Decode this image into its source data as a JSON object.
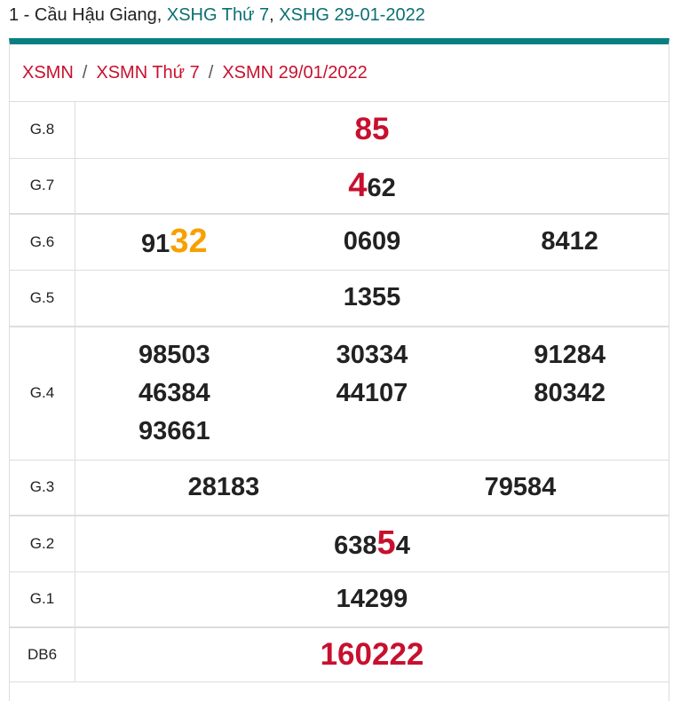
{
  "header": {
    "prefix": "1 - Cầu Hậu Giang, ",
    "link1": "XSHG Thứ 7",
    "comma": ", ",
    "link2": "XSHG 29-01-2022"
  },
  "breadcrumb": [
    "XSMN",
    "XSMN Thứ 7",
    "XSMN 29/01/2022"
  ],
  "breadcrumb_sep": "/",
  "colors": {
    "accent": "#0a7f80",
    "red": "#c8102e",
    "orange": "#f7a000",
    "teal_text": "#0b6f73"
  },
  "prizes": [
    {
      "label": "G.8",
      "cols": 1,
      "numbers": [
        [
          {
            "t": "85",
            "c": "big-red"
          }
        ]
      ]
    },
    {
      "label": "G.7",
      "cols": 1,
      "numbers": [
        [
          {
            "t": "4",
            "c": "hl-red"
          },
          {
            "t": "62"
          }
        ]
      ]
    },
    {
      "label": "G.6",
      "cols": 3,
      "numbers": [
        [
          {
            "t": "91"
          },
          {
            "t": "32",
            "c": "hl-orange"
          }
        ],
        [
          {
            "t": "0609"
          }
        ],
        [
          {
            "t": "8412"
          }
        ]
      ]
    },
    {
      "label": "G.5",
      "cols": 1,
      "numbers": [
        [
          {
            "t": "1355"
          }
        ]
      ]
    },
    {
      "label": "G.4",
      "cols": 3,
      "numbers": [
        [
          {
            "t": "98503"
          }
        ],
        [
          {
            "t": "30334"
          }
        ],
        [
          {
            "t": "91284"
          }
        ],
        [
          {
            "t": "46384"
          }
        ],
        [
          {
            "t": "44107"
          }
        ],
        [
          {
            "t": "80342"
          }
        ],
        [
          {
            "t": "93661"
          }
        ]
      ]
    },
    {
      "label": "G.3",
      "cols": 2,
      "numbers": [
        [
          {
            "t": "28183"
          }
        ],
        [
          {
            "t": "79584"
          }
        ]
      ]
    },
    {
      "label": "G.2",
      "cols": 1,
      "numbers": [
        [
          {
            "t": "638"
          },
          {
            "t": "5",
            "c": "hl-red"
          },
          {
            "t": "4"
          }
        ]
      ]
    },
    {
      "label": "G.1",
      "cols": 1,
      "numbers": [
        [
          {
            "t": "14299"
          }
        ]
      ]
    },
    {
      "label": "DB6",
      "cols": 1,
      "numbers": [
        [
          {
            "t": "160222",
            "c": "big-red"
          }
        ]
      ]
    }
  ]
}
